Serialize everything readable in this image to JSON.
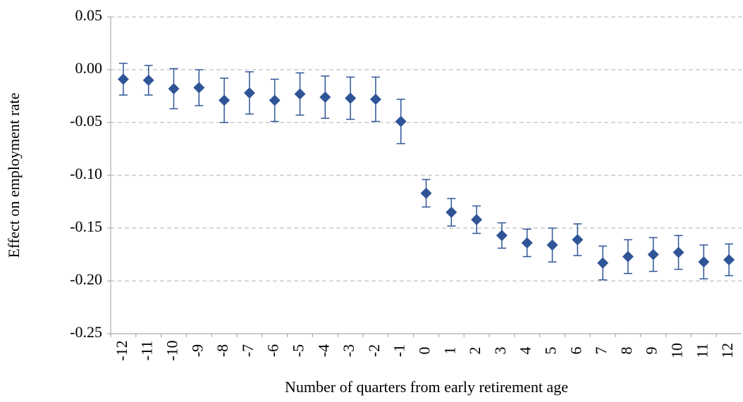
{
  "chart_data": {
    "type": "errorbar",
    "y_label": "Effect on employment rate",
    "x_label": "Number of quarters from early retirement age",
    "categories": [
      "-12",
      "-11",
      "-10",
      "-9",
      "-8",
      "-7",
      "-6",
      "-5",
      "-4",
      "-3",
      "-2",
      "-1",
      "0",
      "1",
      "2",
      "3",
      "4",
      "5",
      "6",
      "7",
      "8",
      "9",
      "10",
      "11",
      "12"
    ],
    "values": [
      -0.009,
      -0.01,
      -0.018,
      -0.017,
      -0.029,
      -0.022,
      -0.029,
      -0.023,
      -0.026,
      -0.027,
      -0.028,
      -0.049,
      -0.117,
      -0.135,
      -0.142,
      -0.157,
      -0.164,
      -0.166,
      -0.161,
      -0.183,
      -0.177,
      -0.175,
      -0.173,
      -0.182,
      -0.18
    ],
    "errors": [
      0.015,
      0.014,
      0.019,
      0.017,
      0.021,
      0.02,
      0.02,
      0.02,
      0.02,
      0.02,
      0.021,
      0.021,
      0.013,
      0.013,
      0.013,
      0.012,
      0.013,
      0.016,
      0.015,
      0.016,
      0.016,
      0.016,
      0.016,
      0.016,
      0.015
    ],
    "color": "#2f5597",
    "ylim": [
      -0.25,
      0.05
    ],
    "yticks": [
      0.05,
      {
        "value": 0,
        "label": "0.00"
      },
      -0.05,
      {
        "value": -0.1,
        "label": "-0.10"
      },
      -0.15,
      {
        "value": -0.2,
        "label": "-0.20"
      },
      -0.25
    ],
    "grid": true
  }
}
